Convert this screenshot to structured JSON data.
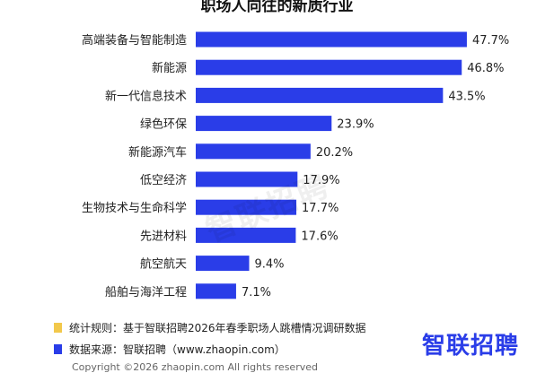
{
  "chart_data": {
    "type": "bar",
    "orientation": "horizontal",
    "title": "职场人向往的新质行业",
    "categories": [
      "高端装备与智能制造",
      "新能源",
      "新一代信息技术",
      "绿色环保",
      "新能源汽车",
      "低空经济",
      "生物技术与生命科学",
      "先进材料",
      "航空航天",
      "船舶与海洋工程"
    ],
    "values": [
      47.7,
      46.8,
      43.5,
      23.9,
      20.2,
      17.9,
      17.7,
      17.6,
      9.4,
      7.1
    ],
    "value_labels": [
      "47.7%",
      "46.8%",
      "43.5%",
      "23.9%",
      "20.2%",
      "17.9%",
      "17.7%",
      "17.6%",
      "9.4%",
      "7.1%"
    ],
    "unit": "%",
    "xlim": [
      0,
      50
    ],
    "grid": false,
    "bar_color": "#2a3de8"
  },
  "watermark_text": "智联招聘",
  "footer": {
    "notes": [
      {
        "text": "统计规则：基于智联招聘2026年春季职场人跳槽情况调研数据",
        "color": "#f2c84b"
      },
      {
        "text": "数据来源：智联招聘（www.zhaopin.com）",
        "color": "#2a3de8"
      }
    ],
    "logo_text": "智联招聘",
    "copyright": "Copyright ©2026 zhaopin.com All rights reserved"
  }
}
